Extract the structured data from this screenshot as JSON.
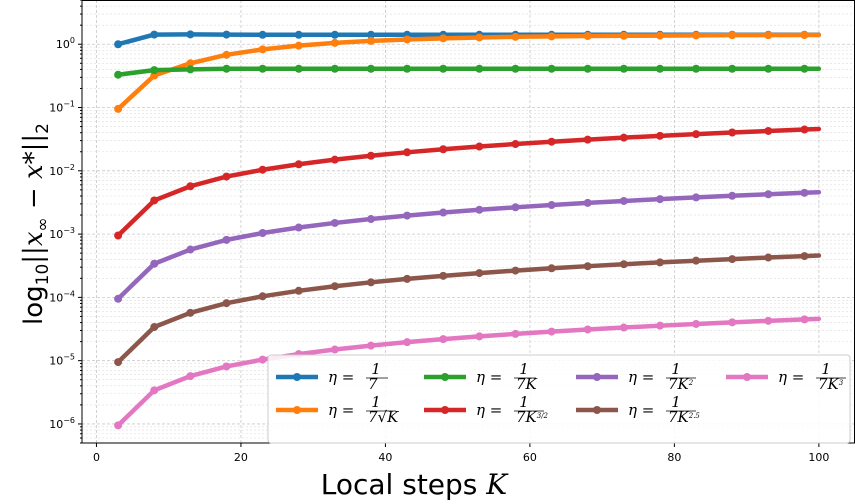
{
  "chart_data": {
    "type": "line",
    "xlabel_prefix": "Local steps ",
    "xlabel_var": "K",
    "ylabel": "log",
    "ylabel_sub": "10",
    "ylabel_body": "||x",
    "ylabel_sub2": "∞",
    "ylabel_rest": " − x*||",
    "ylabel_sub3": "2",
    "y_scale": "log",
    "xlim": [
      -2,
      105
    ],
    "ylim": [
      5e-07,
      5
    ],
    "grid": true,
    "legend_position": "lower-right",
    "x_ticks": [
      0,
      20,
      40,
      60,
      80,
      100
    ],
    "x_tick_labels": [
      "0",
      "20",
      "40",
      "60",
      "80",
      "100"
    ],
    "y_ticks": [
      1,
      0.1,
      0.01,
      0.001,
      0.0001,
      1e-05,
      1e-06
    ],
    "y_tick_mantissa": [
      "10",
      "10",
      "10",
      "10",
      "10",
      "10",
      "10"
    ],
    "y_tick_exponents": [
      "0",
      "−1",
      "−2",
      "−3",
      "−4",
      "−5",
      "−6"
    ],
    "x": [
      3,
      8,
      13,
      18,
      23,
      28,
      33,
      38,
      43,
      48,
      53,
      58,
      63,
      68,
      73,
      78,
      83,
      88,
      93,
      98,
      100
    ],
    "series": [
      {
        "name": "η = 1/7",
        "color": "#1f77b4",
        "scale_exp": 0,
        "values": [
          1.0,
          1.42,
          1.43,
          1.42,
          1.41,
          1.41,
          1.41,
          1.41,
          1.41,
          1.41,
          1.41,
          1.41,
          1.41,
          1.41,
          1.41,
          1.41,
          1.41,
          1.41,
          1.41,
          1.41,
          1.41
        ]
      },
      {
        "name": "η = 1/(7√K)",
        "color": "#ff7f0e",
        "scale_exp": 0,
        "values": [
          0.095,
          0.32,
          0.5,
          0.68,
          0.83,
          0.95,
          1.05,
          1.13,
          1.19,
          1.24,
          1.28,
          1.31,
          1.33,
          1.35,
          1.36,
          1.37,
          1.38,
          1.39,
          1.39,
          1.4,
          1.4
        ]
      },
      {
        "name": "η = 1/(7K)",
        "color": "#2ca02c",
        "scale_exp": 0,
        "values": [
          0.33,
          0.39,
          0.4,
          0.41,
          0.41,
          0.41,
          0.41,
          0.41,
          0.41,
          0.41,
          0.41,
          0.41,
          0.41,
          0.41,
          0.41,
          0.41,
          0.41,
          0.41,
          0.41,
          0.41,
          0.41
        ]
      },
      {
        "name": "η = 1/(7K^{3/2})",
        "color": "#d62728",
        "scale_exp": -2,
        "values": [
          0.095,
          0.34,
          0.57,
          0.81,
          1.04,
          1.27,
          1.5,
          1.73,
          1.96,
          2.19,
          2.42,
          2.65,
          2.88,
          3.11,
          3.34,
          3.57,
          3.8,
          4.03,
          4.26,
          4.49,
          4.58
        ]
      },
      {
        "name": "η = 1/(7K^2)",
        "color": "#9467bd",
        "scale_exp": -3,
        "values": [
          0.095,
          0.34,
          0.57,
          0.81,
          1.04,
          1.27,
          1.5,
          1.73,
          1.96,
          2.19,
          2.42,
          2.65,
          2.88,
          3.11,
          3.34,
          3.57,
          3.8,
          4.03,
          4.26,
          4.49,
          4.58
        ]
      },
      {
        "name": "η = 1/(7K^{2.5})",
        "color": "#8c564b",
        "scale_exp": -4,
        "values": [
          0.095,
          0.34,
          0.57,
          0.81,
          1.04,
          1.27,
          1.5,
          1.73,
          1.96,
          2.19,
          2.42,
          2.65,
          2.88,
          3.11,
          3.34,
          3.57,
          3.8,
          4.03,
          4.26,
          4.49,
          4.58
        ]
      },
      {
        "name": "η = 1/(7K^3)",
        "color": "#e377c2",
        "scale_exp": -5,
        "values": [
          0.095,
          0.34,
          0.57,
          0.81,
          1.04,
          1.27,
          1.5,
          1.73,
          1.96,
          2.19,
          2.42,
          2.65,
          2.88,
          3.11,
          3.34,
          3.57,
          3.8,
          4.03,
          4.26,
          4.49,
          4.58
        ]
      }
    ],
    "legend": [
      {
        "eta": "η",
        "eq": " = ",
        "num": "1",
        "den": "7"
      },
      {
        "eta": "η",
        "eq": " = ",
        "num": "1",
        "den": "7√K"
      },
      {
        "eta": "η",
        "eq": " = ",
        "num": "1",
        "den": "7K"
      },
      {
        "eta": "η",
        "eq": " = ",
        "num": "1",
        "den": "7K",
        "den_sup": "3/2"
      },
      {
        "eta": "η",
        "eq": " = ",
        "num": "1",
        "den": "7K",
        "den_sup": "2"
      },
      {
        "eta": "η",
        "eq": " = ",
        "num": "1",
        "den": "7K",
        "den_sup": "2.5"
      },
      {
        "eta": "η",
        "eq": " = ",
        "num": "1",
        "den": "7K",
        "den_sup": "3"
      }
    ]
  }
}
